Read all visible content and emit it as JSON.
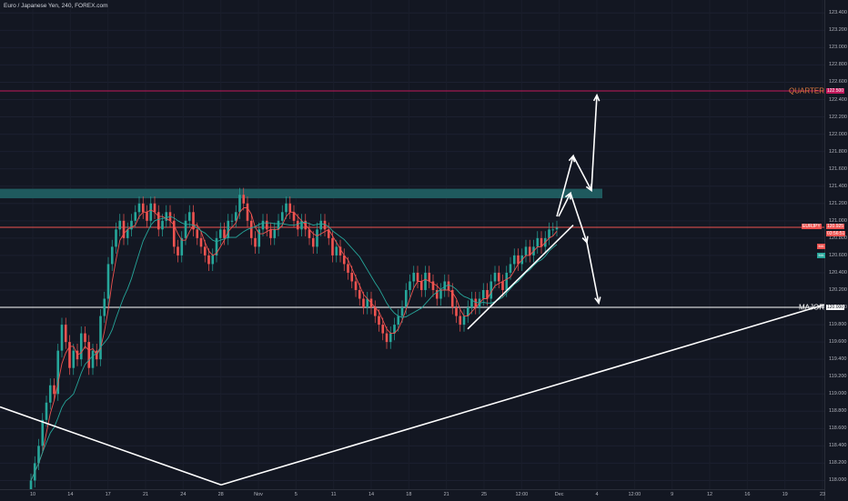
{
  "header": {
    "symbol_title": "Euro / Japanese Yen, 240, FOREX.com"
  },
  "colors": {
    "background": "#131722",
    "bull_candle": "#26a69a",
    "bear_candle": "#ef5350",
    "ma_fast": "#ef5350",
    "ma_slow": "#26a69a",
    "zone": "#1f5a5e",
    "quarter_line": "#c2185b",
    "drawing": "#ffffff"
  },
  "chart_data": {
    "type": "candlestick",
    "title": "Euro / Japanese Yen, 240, FOREX.com",
    "y_axis": {
      "ylim": [
        117.9,
        123.55
      ],
      "ticks": [
        "123.400",
        "123.200",
        "123.000",
        "122.800",
        "122.600",
        "122.400",
        "122.200",
        "122.000",
        "121.800",
        "121.600",
        "121.400",
        "121.200",
        "121.000",
        "120.800",
        "120.600",
        "120.400",
        "120.200",
        "120.000",
        "119.800",
        "119.600",
        "119.400",
        "119.200",
        "119.000",
        "118.800",
        "118.600",
        "118.400",
        "118.200",
        "118.000"
      ]
    },
    "x_axis": {
      "ticks": [
        "10",
        "14",
        "17",
        "21",
        "24",
        "28",
        "Nov",
        "5",
        "11",
        "14",
        "18",
        "21",
        "25",
        "12:00",
        "Dec",
        "4",
        "12:00",
        "9",
        "12",
        "16",
        "19",
        "23"
      ]
    },
    "price_labels": [
      {
        "text": "122.500",
        "price": 122.5,
        "color": "#c2185b"
      },
      {
        "text": "EURJPY",
        "price": 120.93,
        "color": "#ef5350"
      },
      {
        "text": "120.925",
        "price": 120.93,
        "color": "#ef5350"
      },
      {
        "text": "03:56:51",
        "price": 120.85,
        "color": "#ef5350"
      },
      {
        "text": "120.000",
        "price": 120.0,
        "color": "#131722"
      }
    ],
    "indicator_badges": [
      {
        "text": "MA",
        "price": 120.7,
        "color": "#ef5350"
      },
      {
        "text": "MA",
        "price": 120.6,
        "color": "#26a69a"
      }
    ],
    "horizontal_lines": [
      {
        "label": "QUARTER",
        "price": 122.5,
        "color": "#c2185b"
      },
      {
        "label": "",
        "price": 120.925,
        "color": "#ef5350"
      },
      {
        "label": "MAJOR",
        "price": 120.0,
        "color": "#ffffff"
      }
    ],
    "zone": {
      "top": 121.37,
      "bottom": 121.26
    },
    "candles_closes": [
      118.0,
      118.2,
      118.4,
      118.7,
      118.9,
      119.1,
      119.0,
      119.5,
      119.8,
      119.6,
      119.3,
      119.5,
      119.4,
      119.7,
      119.6,
      119.3,
      119.5,
      119.4,
      119.9,
      120.1,
      120.5,
      120.7,
      120.9,
      121.0,
      120.8,
      120.9,
      121.0,
      121.1,
      121.2,
      121.1,
      121.0,
      121.2,
      121.1,
      120.9,
      121.0,
      121.1,
      121.0,
      120.7,
      120.6,
      120.8,
      121.0,
      121.1,
      120.9,
      120.8,
      120.7,
      120.6,
      120.5,
      120.6,
      120.8,
      120.9,
      120.8,
      121.0,
      121.0,
      121.1,
      121.3,
      121.2,
      121.0,
      120.8,
      120.7,
      120.9,
      121.0,
      120.9,
      120.8,
      120.9,
      121.0,
      121.1,
      121.2,
      121.1,
      121.0,
      120.9,
      121.0,
      120.9,
      120.8,
      120.7,
      120.9,
      121.0,
      120.9,
      120.8,
      120.6,
      120.7,
      120.6,
      120.5,
      120.4,
      120.3,
      120.2,
      120.1,
      120.0,
      120.1,
      120.0,
      119.9,
      119.8,
      119.7,
      119.6,
      119.7,
      119.8,
      119.9,
      120.0,
      120.2,
      120.3,
      120.4,
      120.3,
      120.2,
      120.4,
      120.3,
      120.2,
      120.1,
      120.2,
      120.3,
      120.2,
      120.0,
      119.9,
      119.8,
      119.9,
      120.0,
      120.1,
      120.0,
      120.1,
      120.2,
      120.1,
      120.3,
      120.4,
      120.3,
      120.2,
      120.4,
      120.5,
      120.6,
      120.5,
      120.6,
      120.7,
      120.6,
      120.7,
      120.8,
      120.7,
      120.8,
      120.9,
      120.9,
      120.92
    ]
  }
}
